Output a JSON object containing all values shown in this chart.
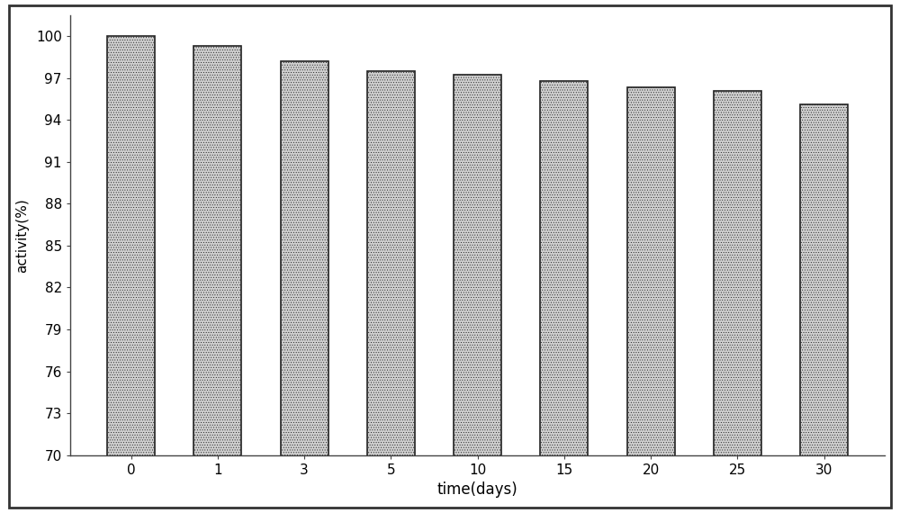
{
  "categories": [
    "0",
    "1",
    "3",
    "5",
    "10",
    "15",
    "20",
    "25",
    "30"
  ],
  "values": [
    100.0,
    99.3,
    98.2,
    97.5,
    97.2,
    96.8,
    96.3,
    96.1,
    95.1
  ],
  "bar_color": "#d0d0d0",
  "bar_edge_color": "#222222",
  "bar_edge_width": 1.2,
  "xlabel": "time(days)",
  "ylabel": "activity(%)",
  "ylim_min": 70,
  "ylim_max": 101.5,
  "yticks": [
    70,
    73,
    76,
    79,
    82,
    85,
    88,
    91,
    94,
    97,
    100
  ],
  "background_color": "#ffffff",
  "bar_width": 0.55,
  "xlabel_fontsize": 12,
  "ylabel_fontsize": 11,
  "tick_fontsize": 11
}
